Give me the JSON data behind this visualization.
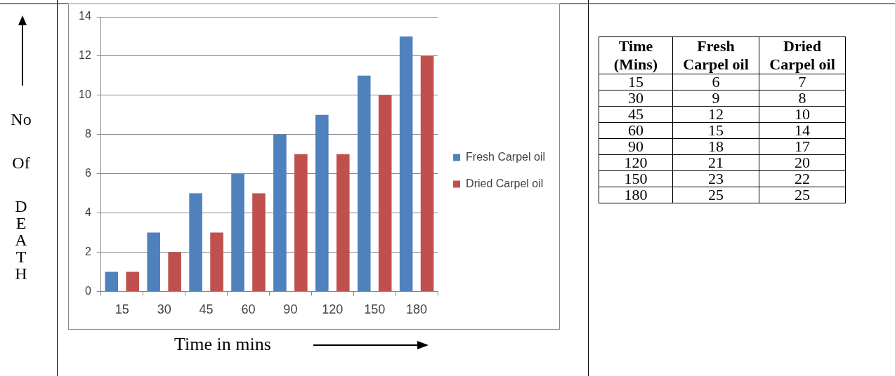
{
  "chart_data": [
    {
      "type": "bar",
      "xlabel": "Time in mins",
      "ylabel": "No Of DEATH",
      "categories": [
        "15",
        "30",
        "45",
        "60",
        "90",
        "120",
        "150",
        "180"
      ],
      "series": [
        {
          "name": "Fresh Carpel oil",
          "color": "#4f81bd",
          "values": [
            1,
            3,
            5,
            6,
            8,
            9,
            11,
            13
          ]
        },
        {
          "name": "Dried Carpel oil",
          "color": "#c0504d",
          "values": [
            1,
            2,
            3,
            5,
            7,
            7,
            10,
            12
          ]
        }
      ],
      "ylim": [
        0,
        14
      ],
      "yticks": [
        0,
        2,
        4,
        6,
        8,
        10,
        12,
        14
      ],
      "grid": "y",
      "legend": "right"
    },
    {
      "type": "heatmap",
      "ylabel": "Time (Mins)",
      "categories": [
        "Fresh Carpel oil",
        "Dried Carpel oil"
      ],
      "y_categories": [
        "15",
        "30",
        "45",
        "60",
        "90",
        "120",
        "150",
        "180"
      ],
      "cells": [
        [
          6,
          7
        ],
        [
          9,
          8
        ],
        [
          12,
          10
        ],
        [
          15,
          14
        ],
        [
          18,
          17
        ],
        [
          21,
          20
        ],
        [
          23,
          22
        ],
        [
          25,
          25
        ]
      ],
      "data_labels": true
    }
  ]
}
